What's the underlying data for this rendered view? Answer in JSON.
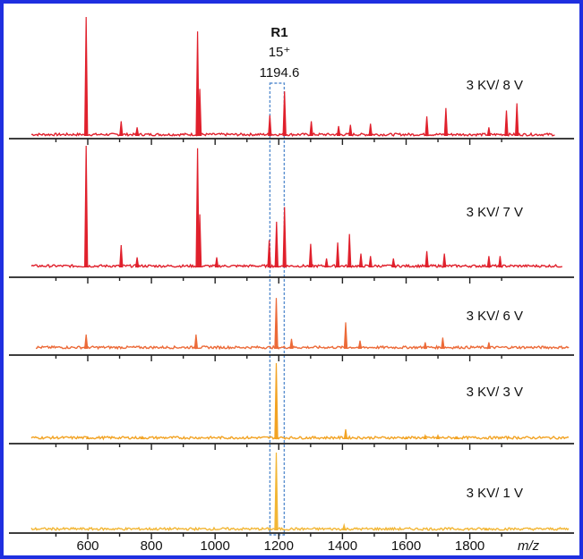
{
  "frame_color": "#1f2fe0",
  "highlight_box_color": "#5a8fd0",
  "chart_data": {
    "type": "line",
    "title": "",
    "xlabel": "m/z",
    "ylabel": "",
    "xlim": [
      420,
      1940
    ],
    "x_ticks": [
      600,
      800,
      1000,
      1200,
      1400,
      1600,
      1800
    ],
    "x_tick_labels": [
      "600",
      "800",
      "1000",
      "1200",
      "1400",
      "1600",
      "1800"
    ],
    "highlight": {
      "x_center": 1194.6,
      "label": "R1",
      "charge": "15⁺",
      "mz_label": "1194.6"
    },
    "series": [
      {
        "label": "3 KV/ 8 V",
        "color": "#e0202c",
        "peaks": [
          [
            595,
            100
          ],
          [
            705,
            13
          ],
          [
            755,
            8
          ],
          [
            945,
            88
          ],
          [
            952,
            40
          ],
          [
            1172,
            18
          ],
          [
            1218,
            38
          ],
          [
            1302,
            13
          ],
          [
            1388,
            9
          ],
          [
            1425,
            10
          ],
          [
            1488,
            11
          ],
          [
            1665,
            17
          ],
          [
            1725,
            24
          ],
          [
            1860,
            8
          ],
          [
            1915,
            22
          ],
          [
            1948,
            28
          ]
        ]
      },
      {
        "label": "3 KV/ 7 V",
        "color": "#e0202c",
        "peaks": [
          [
            595,
            100
          ],
          [
            705,
            19
          ],
          [
            755,
            9
          ],
          [
            945,
            98
          ],
          [
            952,
            44
          ],
          [
            1005,
            9
          ],
          [
            1170,
            23
          ],
          [
            1193,
            38
          ],
          [
            1218,
            50
          ],
          [
            1300,
            20
          ],
          [
            1350,
            8
          ],
          [
            1385,
            21
          ],
          [
            1422,
            28
          ],
          [
            1458,
            12
          ],
          [
            1488,
            10
          ],
          [
            1560,
            8
          ],
          [
            1665,
            14
          ],
          [
            1720,
            12
          ],
          [
            1860,
            10
          ],
          [
            1895,
            10
          ]
        ]
      },
      {
        "label": "3 KV/ 6 V",
        "color": "#ec6a38",
        "peaks": [
          [
            595,
            25
          ],
          [
            940,
            25
          ],
          [
            1192,
            85
          ],
          [
            1240,
            18
          ],
          [
            1410,
            45
          ],
          [
            1455,
            15
          ],
          [
            1660,
            12
          ],
          [
            1715,
            20
          ],
          [
            1860,
            12
          ]
        ]
      },
      {
        "label": "3 KV/ 3 V",
        "color": "#f2a324",
        "peaks": [
          [
            600,
            4
          ],
          [
            770,
            3
          ],
          [
            1192,
            100
          ],
          [
            1410,
            14
          ],
          [
            1600,
            4
          ],
          [
            1660,
            6
          ],
          [
            1700,
            6
          ],
          [
            1760,
            4
          ]
        ]
      },
      {
        "label": "3 KV/ 1 V",
        "color": "#f2b635",
        "peaks": [
          [
            1192,
            100
          ],
          [
            1405,
            8
          ],
          [
            1850,
            3
          ]
        ]
      }
    ]
  }
}
